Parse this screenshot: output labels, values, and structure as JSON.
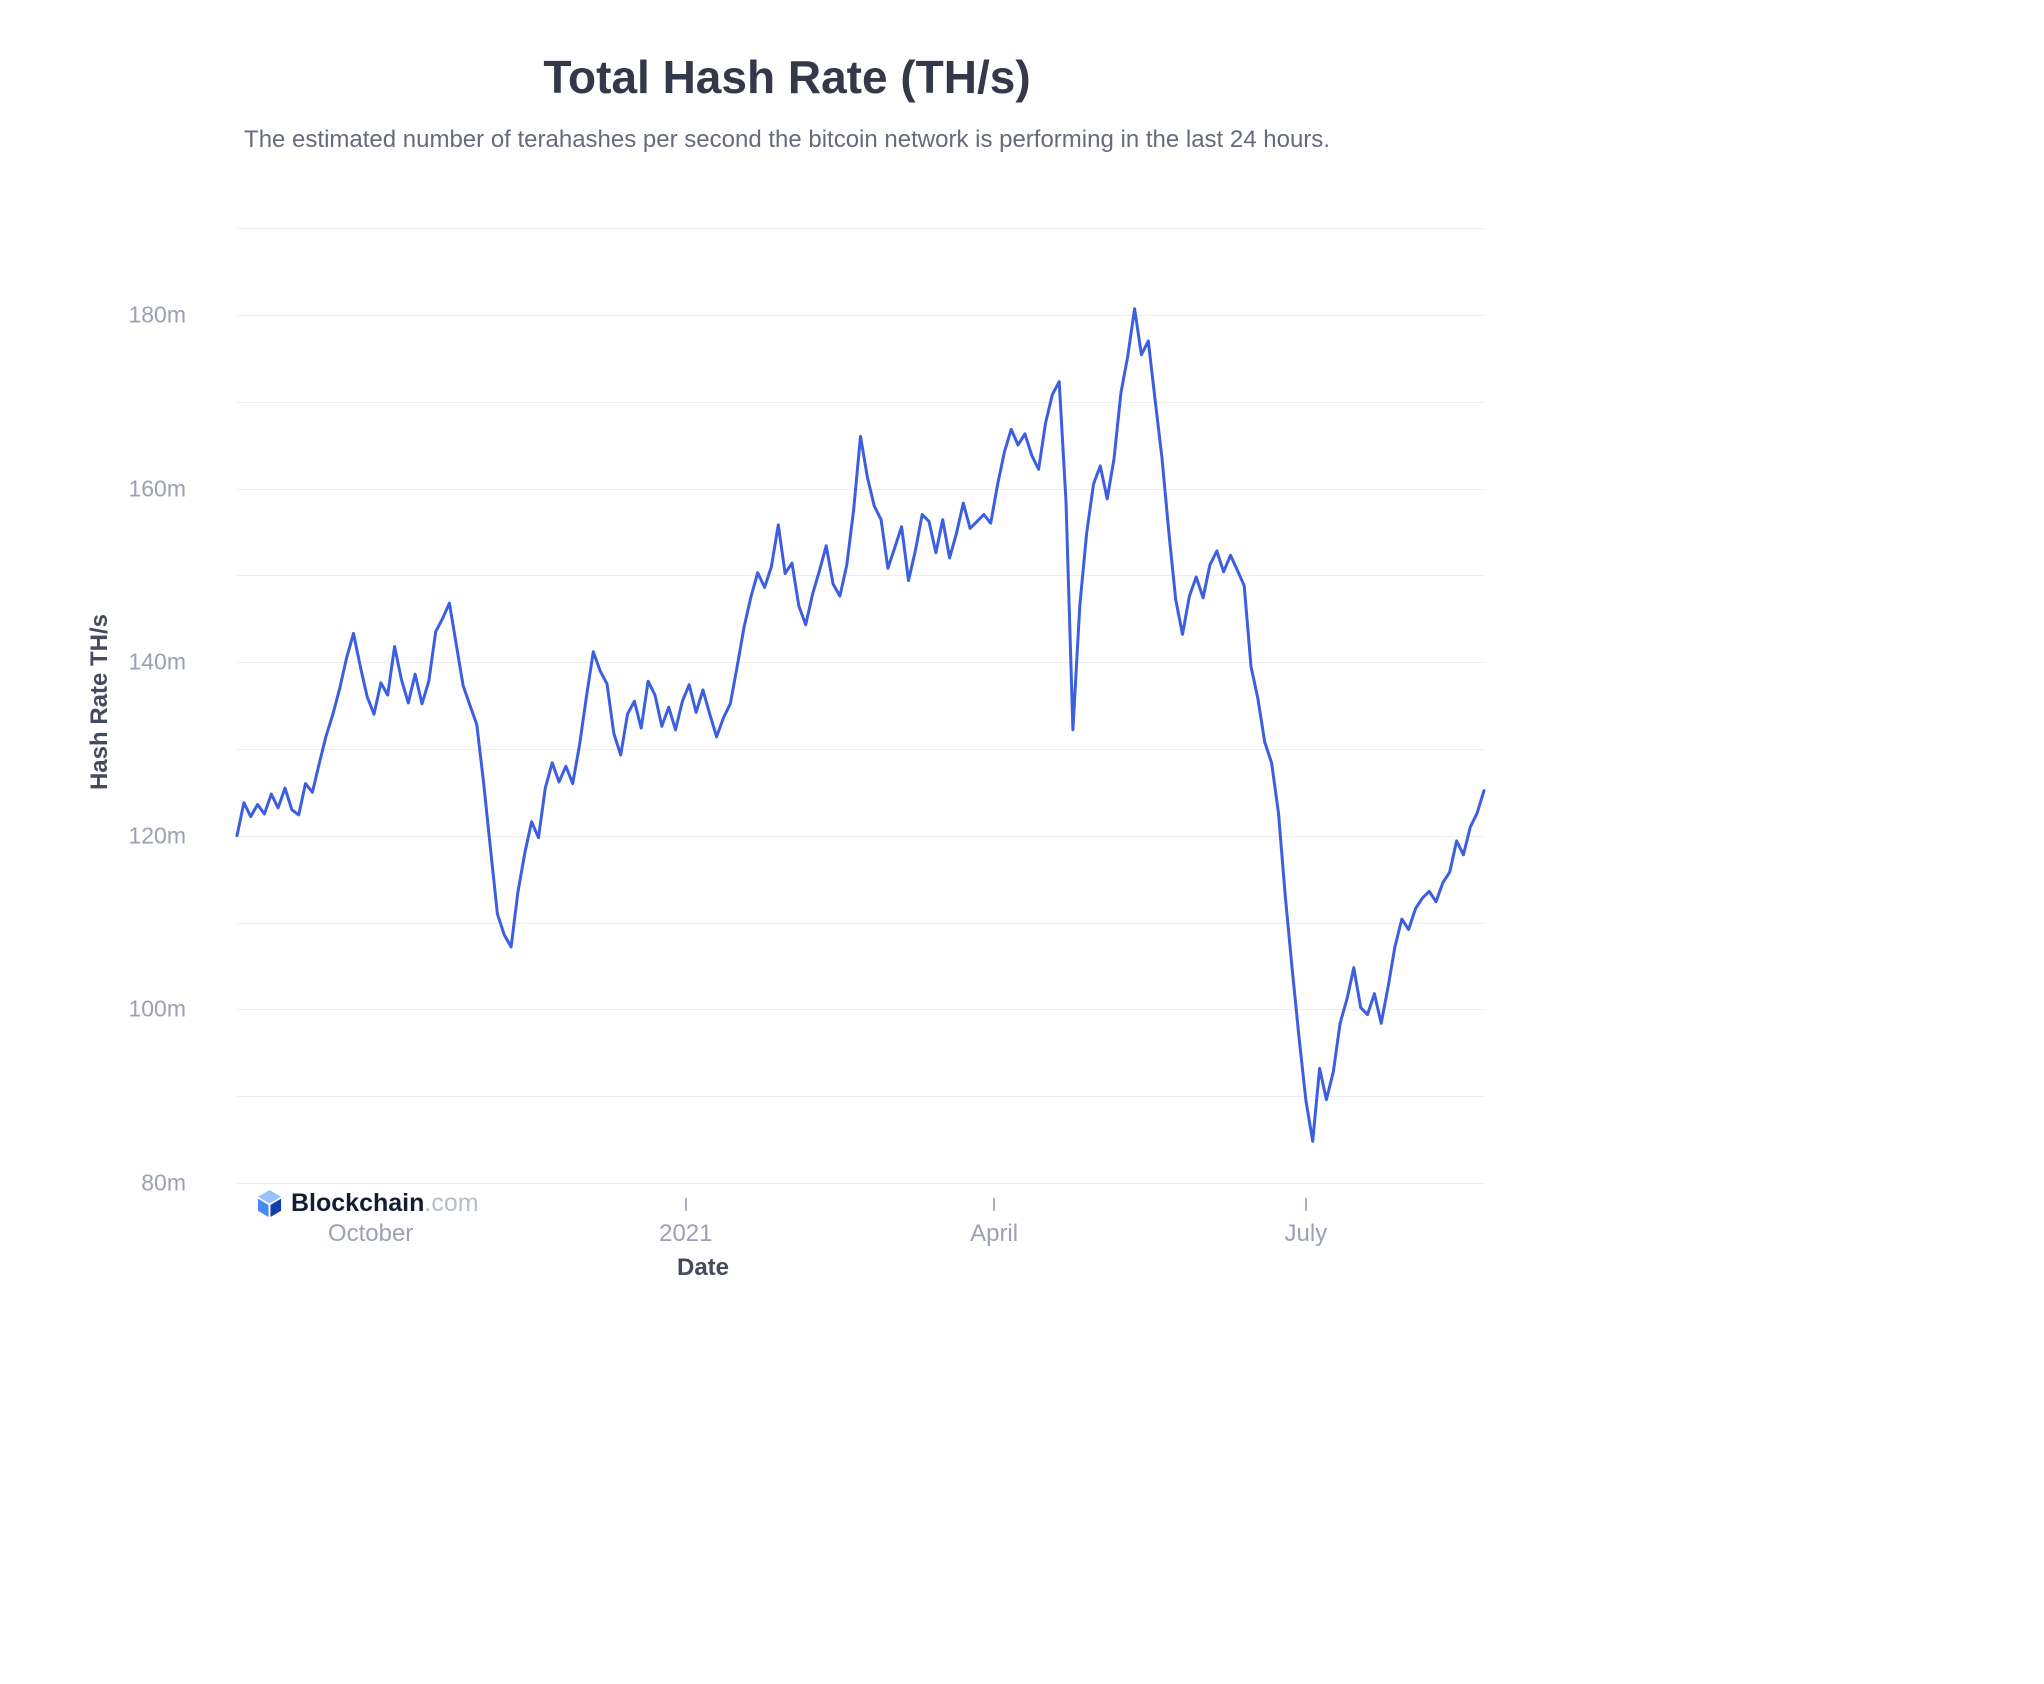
{
  "branding": {
    "name": "Blockchain",
    "tld": ".com"
  },
  "chart_data": {
    "type": "line",
    "title": "Total Hash Rate (TH/s)",
    "subtitle": "The estimated number of terahashes per second the bitcoin network is performing in the last 24 hours.",
    "xlabel": "Date",
    "ylabel": "Hash Rate TH/s",
    "legend": "none",
    "grid": true,
    "line_color": "#3b5fe0",
    "y_axis": {
      "min": 80,
      "max": 190,
      "grid_step": 10,
      "unit_suffix": "m",
      "labels": [
        80,
        100,
        120,
        140,
        160,
        180
      ]
    },
    "x_axis": {
      "start": "2020-08-23",
      "end": "2021-08-22",
      "ticks": [
        {
          "date": "2020-10-01",
          "label": "October"
        },
        {
          "date": "2021-01-01",
          "label": "2021"
        },
        {
          "date": "2021-04-01",
          "label": "April"
        },
        {
          "date": "2021-07-01",
          "label": "July"
        }
      ]
    },
    "series": [
      {
        "name": "Total Hash Rate",
        "unit": "m TH/s",
        "start_date": "2020-08-23",
        "interval_days": 2,
        "values": [
          120.0,
          123.8,
          122.2,
          123.6,
          122.5,
          124.8,
          123.2,
          125.5,
          123.0,
          122.4,
          126.0,
          125.0,
          128.3,
          131.5,
          134.0,
          137.0,
          140.5,
          143.3,
          139.5,
          136.0,
          134.0,
          137.6,
          136.2,
          141.8,
          138.0,
          135.3,
          138.6,
          135.2,
          137.8,
          143.5,
          145.0,
          146.8,
          142.0,
          137.3,
          135.0,
          132.8,
          126.0,
          118.5,
          111.0,
          108.6,
          107.2,
          113.5,
          118.0,
          121.6,
          119.8,
          125.5,
          128.4,
          126.2,
          128.0,
          126.0,
          130.5,
          136.0,
          141.2,
          139.0,
          137.5,
          131.8,
          129.3,
          134.0,
          135.5,
          132.4,
          137.8,
          136.2,
          132.6,
          134.8,
          132.2,
          135.5,
          137.4,
          134.2,
          136.8,
          134.0,
          131.4,
          133.6,
          135.2,
          139.5,
          144.0,
          147.5,
          150.3,
          148.6,
          151.0,
          155.8,
          150.2,
          151.4,
          146.5,
          144.3,
          147.8,
          150.5,
          153.4,
          149.0,
          147.6,
          151.2,
          157.5,
          166.0,
          161.3,
          158.0,
          156.4,
          150.8,
          153.2,
          155.6,
          149.4,
          152.8,
          157.0,
          156.2,
          152.6,
          156.4,
          152.0,
          154.8,
          158.3,
          155.4,
          156.2,
          157.0,
          156.0,
          160.4,
          164.2,
          166.8,
          165.0,
          166.3,
          163.8,
          162.2,
          167.5,
          170.8,
          172.3,
          158.5,
          132.2,
          146.5,
          154.8,
          160.5,
          162.6,
          158.8,
          163.4,
          171.0,
          175.2,
          180.7,
          175.4,
          177.0,
          170.2,
          163.5,
          155.0,
          147.2,
          143.2,
          147.6,
          149.8,
          147.4,
          151.2,
          152.8,
          150.4,
          152.3,
          150.6,
          148.8,
          139.5,
          135.8,
          130.8,
          128.4,
          122.6,
          113.0,
          104.6,
          96.8,
          89.5,
          84.8,
          93.2,
          89.6,
          92.8,
          98.4,
          101.2,
          104.8,
          100.2,
          99.4,
          101.8,
          98.4,
          102.6,
          107.2,
          110.4,
          109.2,
          111.6,
          112.8,
          113.6,
          112.4,
          114.6,
          115.8,
          119.4,
          117.8,
          121.0,
          122.6,
          125.2
        ]
      }
    ]
  }
}
